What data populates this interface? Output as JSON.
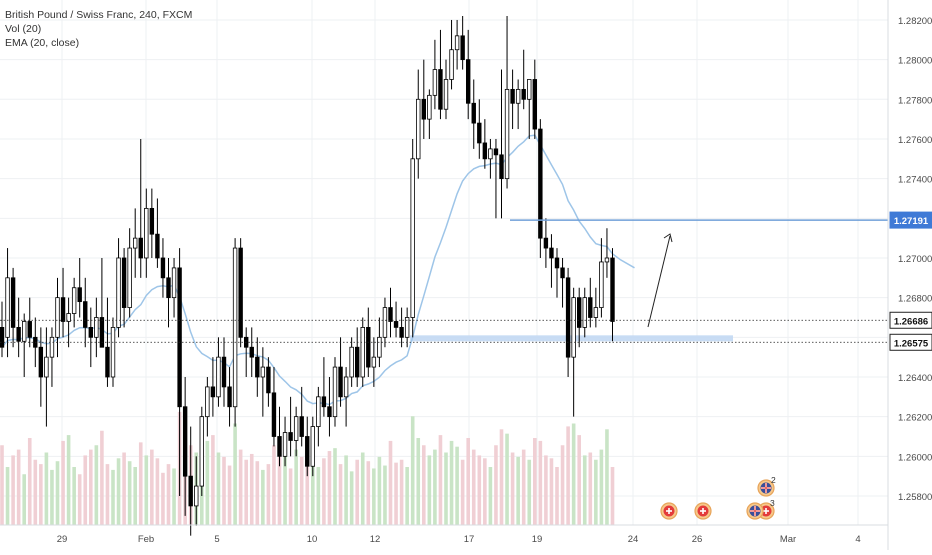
{
  "legend": {
    "symbol": "British Pound / Swiss Franc, 240, FXCM",
    "vol": "Vol (20)",
    "ema": "EMA (20, close)"
  },
  "colors": {
    "up": "#ffffff",
    "down": "#000000",
    "wick": "#000000",
    "ema": "#9ec5e8",
    "vol_up": "#c9e4c6",
    "vol_down": "#f0cfd4",
    "hline": "#6f9fd8",
    "zone": "#c2d8f3",
    "grid": "#eef0f3"
  },
  "chart_data": {
    "type": "candlestick",
    "title": "British Pound / Swiss Franc, 240, FXCM",
    "y_axis": {
      "ticks": [
        "1.28200",
        "1.28000",
        "1.27800",
        "1.27600",
        "1.27400",
        "1.27200",
        "1.27000",
        "1.26800",
        "1.26600",
        "1.26400",
        "1.26200",
        "1.26000",
        "1.25800"
      ],
      "range": [
        1.2572,
        1.2826
      ]
    },
    "x_axis": {
      "ticks": [
        "29",
        "Feb",
        "5",
        "10",
        "12",
        "17",
        "19",
        "24",
        "26",
        "Mar",
        "4"
      ]
    },
    "price_labels": [
      {
        "value": "1.27191",
        "style": "filled"
      },
      {
        "value": "1.26686",
        "style": "outline"
      },
      {
        "value": "1.26575",
        "style": "outline"
      }
    ],
    "candles": [
      [
        1.2665,
        1.2678,
        1.265,
        1.2655
      ],
      [
        1.266,
        1.2705,
        1.265,
        1.269
      ],
      [
        1.269,
        1.2695,
        1.2655,
        1.2665
      ],
      [
        1.2665,
        1.268,
        1.265,
        1.2658
      ],
      [
        1.2658,
        1.2672,
        1.264,
        1.2668
      ],
      [
        1.2668,
        1.268,
        1.2655,
        1.266
      ],
      [
        1.266,
        1.267,
        1.2645,
        1.2655
      ],
      [
        1.2655,
        1.2665,
        1.2625,
        1.264
      ],
      [
        1.264,
        1.2665,
        1.2615,
        1.265
      ],
      [
        1.265,
        1.2665,
        1.2635,
        1.266
      ],
      [
        1.266,
        1.269,
        1.265,
        1.268
      ],
      [
        1.268,
        1.2695,
        1.266,
        1.2668
      ],
      [
        1.2668,
        1.268,
        1.2655,
        1.2672
      ],
      [
        1.2672,
        1.269,
        1.2665,
        1.2685
      ],
      [
        1.2685,
        1.27,
        1.267,
        1.2678
      ],
      [
        1.2678,
        1.269,
        1.2655,
        1.2665
      ],
      [
        1.2665,
        1.2675,
        1.2645,
        1.266
      ],
      [
        1.266,
        1.268,
        1.265,
        1.267
      ],
      [
        1.267,
        1.27,
        1.2655,
        1.2655
      ],
      [
        1.2655,
        1.268,
        1.2635,
        1.264
      ],
      [
        1.264,
        1.267,
        1.2635,
        1.2665
      ],
      [
        1.2665,
        1.271,
        1.266,
        1.27
      ],
      [
        1.27,
        1.2705,
        1.2665,
        1.2675
      ],
      [
        1.2675,
        1.2715,
        1.267,
        1.2705
      ],
      [
        1.2705,
        1.2725,
        1.269,
        1.271
      ],
      [
        1.271,
        1.276,
        1.269,
        1.27
      ],
      [
        1.27,
        1.2735,
        1.269,
        1.2725
      ],
      [
        1.2725,
        1.2735,
        1.27,
        1.2712
      ],
      [
        1.2712,
        1.273,
        1.2695,
        1.27
      ],
      [
        1.27,
        1.271,
        1.268,
        1.269
      ],
      [
        1.269,
        1.27,
        1.2665,
        1.268
      ],
      [
        1.268,
        1.27,
        1.267,
        1.2695
      ],
      [
        1.2695,
        1.2705,
        1.258,
        1.2625
      ],
      [
        1.2625,
        1.264,
        1.257,
        1.259
      ],
      [
        1.259,
        1.2615,
        1.256,
        1.2575
      ],
      [
        1.2575,
        1.26,
        1.2565,
        1.2585
      ],
      [
        1.2585,
        1.2625,
        1.258,
        1.262
      ],
      [
        1.262,
        1.264,
        1.261,
        1.2635
      ],
      [
        1.2635,
        1.265,
        1.262,
        1.263
      ],
      [
        1.263,
        1.266,
        1.2625,
        1.265
      ],
      [
        1.265,
        1.266,
        1.2625,
        1.2635
      ],
      [
        1.2635,
        1.2645,
        1.2615,
        1.2625
      ],
      [
        1.2625,
        1.271,
        1.2615,
        1.2705
      ],
      [
        1.2705,
        1.271,
        1.2655,
        1.266
      ],
      [
        1.266,
        1.2665,
        1.264,
        1.2655
      ],
      [
        1.2655,
        1.2665,
        1.264,
        1.265
      ],
      [
        1.265,
        1.266,
        1.263,
        1.264
      ],
      [
        1.264,
        1.2655,
        1.262,
        1.2645
      ],
      [
        1.2645,
        1.265,
        1.2625,
        1.2632
      ],
      [
        1.2632,
        1.2645,
        1.2605,
        1.261
      ],
      [
        1.261,
        1.2625,
        1.2595,
        1.26
      ],
      [
        1.26,
        1.262,
        1.2595,
        1.2612
      ],
      [
        1.2612,
        1.263,
        1.26,
        1.2608
      ],
      [
        1.2608,
        1.2625,
        1.26,
        1.262
      ],
      [
        1.262,
        1.2635,
        1.2605,
        1.261
      ],
      [
        1.261,
        1.262,
        1.259,
        1.2595
      ],
      [
        1.2595,
        1.262,
        1.259,
        1.2615
      ],
      [
        1.2615,
        1.2635,
        1.2605,
        1.263
      ],
      [
        1.263,
        1.265,
        1.262,
        1.2625
      ],
      [
        1.2625,
        1.264,
        1.261,
        1.262
      ],
      [
        1.262,
        1.265,
        1.2615,
        1.2645
      ],
      [
        1.2645,
        1.266,
        1.2625,
        1.263
      ],
      [
        1.263,
        1.2645,
        1.2615,
        1.264
      ],
      [
        1.264,
        1.266,
        1.2635,
        1.2655
      ],
      [
        1.2655,
        1.2665,
        1.2635,
        1.264
      ],
      [
        1.264,
        1.267,
        1.2635,
        1.2665
      ],
      [
        1.2665,
        1.2675,
        1.264,
        1.2645
      ],
      [
        1.2645,
        1.266,
        1.2635,
        1.265
      ],
      [
        1.265,
        1.267,
        1.2645,
        1.266
      ],
      [
        1.266,
        1.268,
        1.2655,
        1.2675
      ],
      [
        1.2675,
        1.2685,
        1.266,
        1.2668
      ],
      [
        1.2668,
        1.2678,
        1.266,
        1.2665
      ],
      [
        1.2665,
        1.2675,
        1.2655,
        1.266
      ],
      [
        1.266,
        1.2675,
        1.2655,
        1.267
      ],
      [
        1.267,
        1.276,
        1.266,
        1.275
      ],
      [
        1.275,
        1.2795,
        1.274,
        1.278
      ],
      [
        1.278,
        1.28,
        1.276,
        1.277
      ],
      [
        1.277,
        1.2785,
        1.276,
        1.2782
      ],
      [
        1.2782,
        1.281,
        1.2775,
        1.2795
      ],
      [
        1.2795,
        1.2815,
        1.277,
        1.2775
      ],
      [
        1.2775,
        1.28,
        1.277,
        1.279
      ],
      [
        1.279,
        1.282,
        1.2785,
        1.2805
      ],
      [
        1.2805,
        1.282,
        1.2795,
        1.2812
      ],
      [
        1.2812,
        1.2822,
        1.2795,
        1.28
      ],
      [
        1.28,
        1.2815,
        1.277,
        1.2778
      ],
      [
        1.2778,
        1.279,
        1.2755,
        1.2768
      ],
      [
        1.2768,
        1.278,
        1.275,
        1.2758
      ],
      [
        1.2758,
        1.277,
        1.2745,
        1.275
      ],
      [
        1.275,
        1.276,
        1.274,
        1.2755
      ],
      [
        1.2755,
        1.276,
        1.272,
        1.2752
      ],
      [
        1.2752,
        1.2795,
        1.272,
        1.274
      ],
      [
        1.274,
        1.2822,
        1.2735,
        1.2785
      ],
      [
        1.2785,
        1.2795,
        1.2765,
        1.2778
      ],
      [
        1.2778,
        1.279,
        1.2765,
        1.2785
      ],
      [
        1.2785,
        1.2805,
        1.2775,
        1.278
      ],
      [
        1.278,
        1.279,
        1.276,
        1.279
      ],
      [
        1.279,
        1.28,
        1.276,
        1.2765
      ],
      [
        1.2765,
        1.277,
        1.27,
        1.271
      ],
      [
        1.271,
        1.272,
        1.2695,
        1.2705
      ],
      [
        1.2705,
        1.2712,
        1.2685,
        1.27
      ],
      [
        1.27,
        1.2705,
        1.268,
        1.2695
      ],
      [
        1.2695,
        1.27,
        1.2675,
        1.269
      ],
      [
        1.269,
        1.2695,
        1.264,
        1.265
      ],
      [
        1.265,
        1.2685,
        1.262,
        1.268
      ],
      [
        1.268,
        1.2685,
        1.2655,
        1.2665
      ],
      [
        1.2665,
        1.2685,
        1.266,
        1.268
      ],
      [
        1.268,
        1.269,
        1.2665,
        1.267
      ],
      [
        1.267,
        1.2685,
        1.2665,
        1.2675
      ],
      [
        1.2675,
        1.271,
        1.267,
        1.2698
      ],
      [
        1.2698,
        1.2715,
        1.269,
        1.27
      ],
      [
        1.27,
        1.2705,
        1.2658,
        1.2668
      ]
    ],
    "volume": [
      55,
      40,
      48,
      52,
      35,
      60,
      45,
      42,
      50,
      38,
      44,
      58,
      62,
      40,
      35,
      48,
      52,
      55,
      65,
      42,
      38,
      46,
      50,
      44,
      40,
      57,
      48,
      52,
      46,
      36,
      42,
      39,
      78,
      60,
      55,
      50,
      44,
      58,
      62,
      50,
      47,
      41,
      70,
      52,
      45,
      49,
      44,
      38,
      42,
      55,
      61,
      48,
      39,
      52,
      47,
      43,
      56,
      40,
      46,
      51,
      53,
      42,
      48,
      37,
      45,
      50,
      44,
      39,
      47,
      41,
      58,
      43,
      45,
      40,
      75,
      60,
      55,
      48,
      52,
      62,
      50,
      58,
      54,
      45,
      60,
      52,
      48,
      46,
      40,
      55,
      66,
      63,
      50,
      47,
      52,
      45,
      60,
      58,
      48,
      46,
      40,
      55,
      68,
      70,
      62,
      48,
      50,
      45,
      52,
      66,
      40
    ]
  }
}
